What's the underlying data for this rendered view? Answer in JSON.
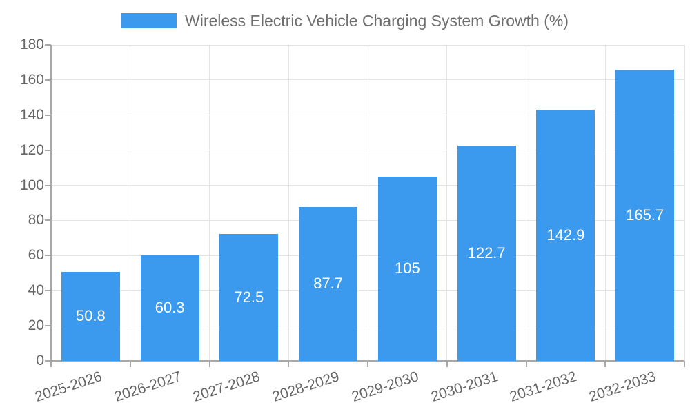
{
  "chart_data": {
    "type": "bar",
    "title": "Wireless Electric Vehicle Charging System Growth (%)",
    "legend_position": "top",
    "legend_entries": [
      "Wireless Electric Vehicle Charging System Growth (%)"
    ],
    "categories": [
      "2025-2026",
      "2026-2027",
      "2027-2028",
      "2028-2029",
      "2029-2030",
      "2030-2031",
      "2031-2032",
      "2032-2033"
    ],
    "values": [
      50.8,
      60.3,
      72.5,
      87.7,
      105,
      122.7,
      142.9,
      165.7
    ],
    "value_labels": [
      "50.8",
      "60.3",
      "72.5",
      "87.7",
      "105",
      "122.7",
      "142.9",
      "165.7"
    ],
    "xlabel": "",
    "ylabel": "",
    "ylim": [
      0,
      180
    ],
    "yticks": [
      0,
      20,
      40,
      60,
      80,
      100,
      120,
      140,
      160,
      180
    ],
    "grid": true,
    "colors": {
      "bar": "#3B9AEE",
      "grid": "#E4E4E4",
      "axis": "#A8A8A8",
      "tick_text": "#666666",
      "legend_text": "#6E6E6E",
      "value_text": "#FFFFFF",
      "background": "#FFFFFF"
    }
  }
}
